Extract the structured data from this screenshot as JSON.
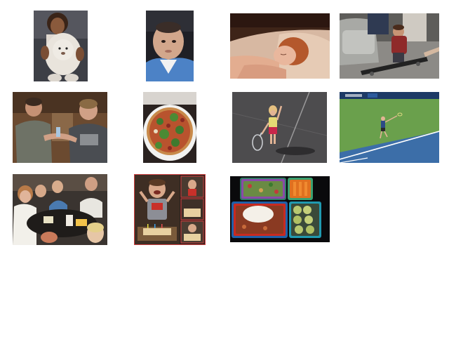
{
  "gallery": {
    "thumbnails": [
      {
        "subject": "child-hugging-teddy-bear"
      },
      {
        "subject": "infant-portrait"
      },
      {
        "subject": "sleeping-child"
      },
      {
        "subject": "child-on-skateboard-living-room"
      },
      {
        "subject": "two-men-at-party"
      },
      {
        "subject": "pizza-with-arugula"
      },
      {
        "subject": "toddler-with-tennis-racket"
      },
      {
        "subject": "tennis-player-serving"
      },
      {
        "subject": "family-dinner-table"
      },
      {
        "subject": "birthday-cake-collage"
      },
      {
        "subject": "bento-lunch-box"
      }
    ]
  }
}
